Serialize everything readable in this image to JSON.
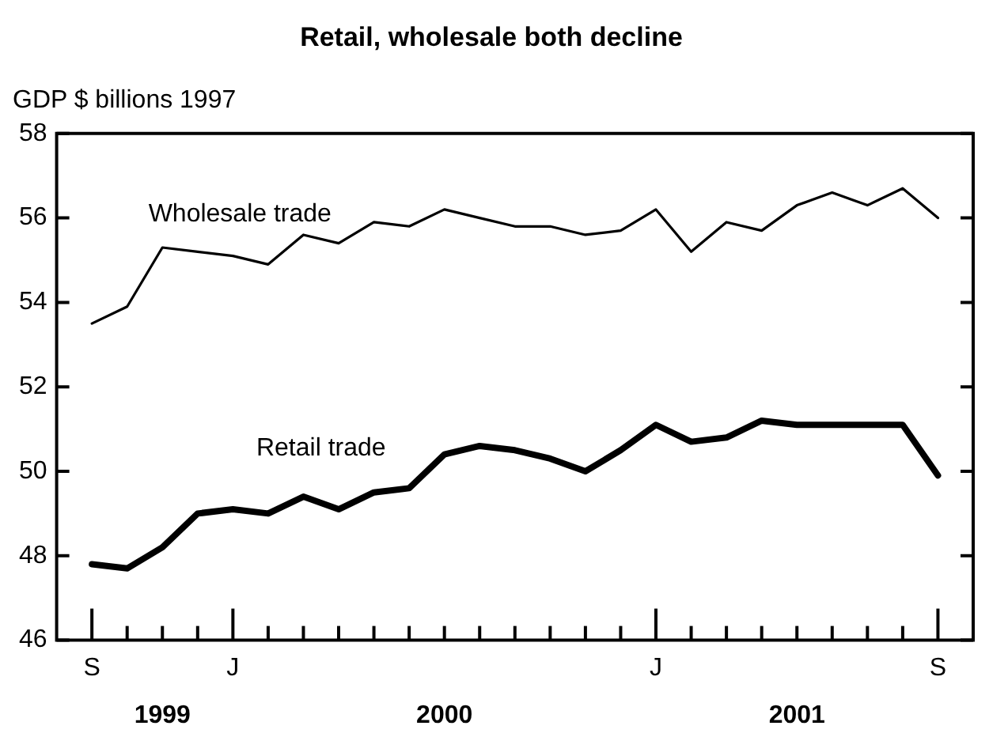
{
  "chart_data": {
    "type": "line",
    "title": "Retail, wholesale both decline",
    "ylabel": "GDP $ billions 1997",
    "categories": [
      "S",
      null,
      null,
      null,
      "J",
      null,
      null,
      null,
      null,
      null,
      null,
      null,
      null,
      null,
      null,
      null,
      "J",
      null,
      null,
      null,
      null,
      null,
      null,
      null,
      "S"
    ],
    "series": [
      {
        "name": "Wholesale trade",
        "color": "#000000",
        "values": [
          53.5,
          53.9,
          55.3,
          55.2,
          55.1,
          54.9,
          55.6,
          55.4,
          55.9,
          55.8,
          56.2,
          56.0,
          55.8,
          55.8,
          55.6,
          55.7,
          56.2,
          55.2,
          55.9,
          55.7,
          56.3,
          56.6,
          56.3,
          56.7,
          56.0
        ]
      },
      {
        "name": "Retail trade",
        "color": "#000000",
        "values": [
          47.8,
          47.7,
          48.2,
          49.0,
          49.1,
          49.0,
          49.4,
          49.1,
          49.5,
          49.6,
          50.4,
          50.6,
          50.5,
          50.3,
          50.0,
          50.5,
          51.1,
          50.7,
          50.8,
          51.2,
          51.1,
          51.1,
          51.1,
          51.1,
          49.9
        ]
      }
    ],
    "ylim": [
      46,
      58
    ],
    "yticks": [
      46,
      48,
      50,
      52,
      54,
      56,
      58
    ],
    "grid": false,
    "legend": false,
    "marker": "none",
    "line_style": "solid",
    "annotations": [
      "1999",
      "2000",
      "2001"
    ]
  }
}
